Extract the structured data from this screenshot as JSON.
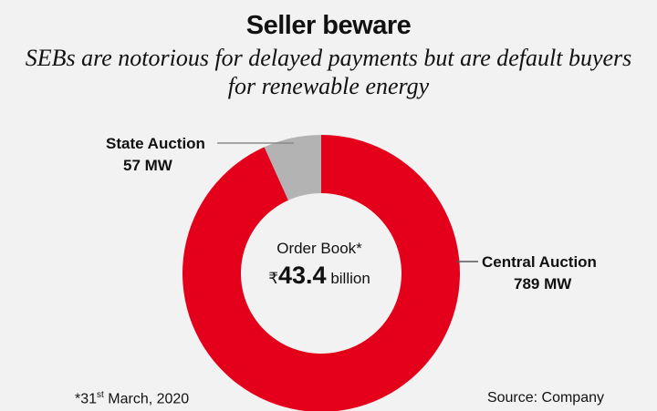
{
  "title": "Seller beware",
  "subtitle": "SEBs are notorious for delayed payments but are default buyers for renewable energy",
  "center": {
    "title": "Order Book*",
    "currency": "₹",
    "value": "43.4",
    "unit": "billion"
  },
  "footnote": {
    "prefix": "*31",
    "sup": "st",
    "suffix": " March, 2020"
  },
  "source": "Source: Company",
  "colors": {
    "state": "#b3b3b3",
    "central": "#e4001b",
    "background": "#f2f2f2"
  },
  "chart_data": {
    "type": "pie",
    "donut": true,
    "slices": [
      {
        "label": "State Auction",
        "value": 57,
        "display": "57 MW",
        "color": "#b3b3b3"
      },
      {
        "label": "Central Auction",
        "value": 789,
        "display": "789 MW",
        "color": "#e4001b"
      }
    ],
    "unit": "MW"
  }
}
